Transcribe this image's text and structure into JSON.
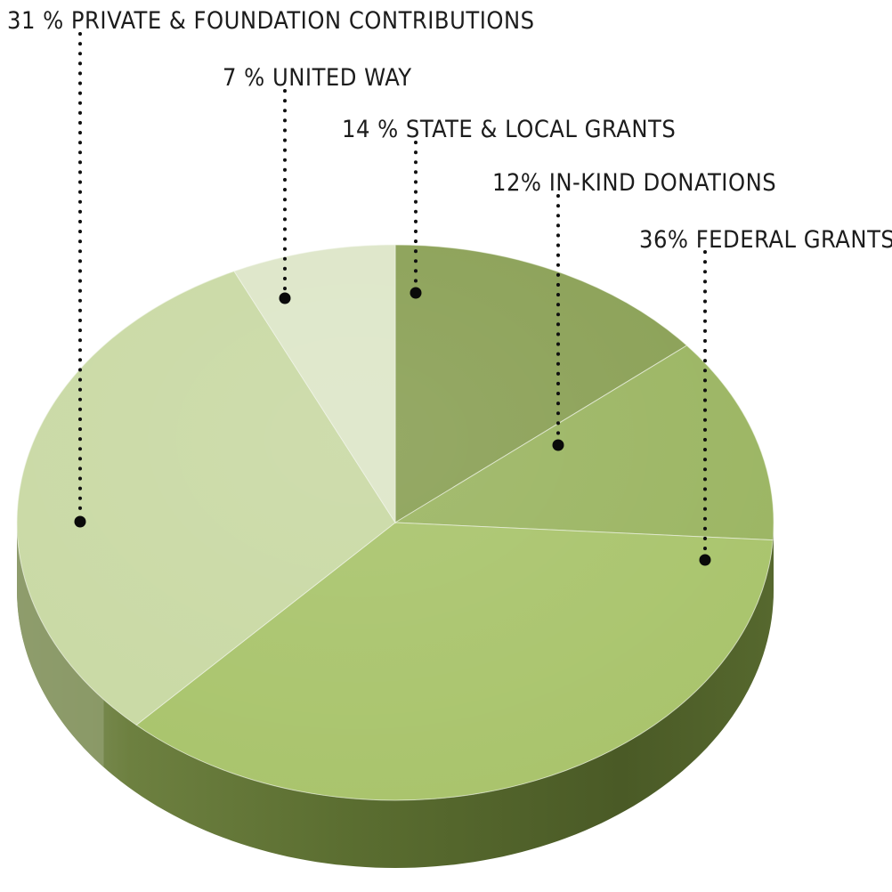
{
  "chart_data": {
    "type": "pie",
    "style": "3d",
    "slices": [
      {
        "label": "36% FEDERAL GRANTS",
        "value": 36,
        "color": "#a9c46c"
      },
      {
        "label": "12% IN-KIND DONATIONS",
        "value": 12,
        "color": "#9bb562"
      },
      {
        "label": "14 % STATE & LOCAL GRANTS",
        "value": 14,
        "color": "#8aa055"
      },
      {
        "label": "7 % UNITED WAY",
        "value": 7,
        "color": "#dde6c8"
      },
      {
        "label": "31 % PRIVATE & FOUNDATION CONTRIBUTIONS",
        "value": 31,
        "color": "#c9d9a4"
      }
    ],
    "side_colors": {
      "dark": "#4e5f2a",
      "light": "#8e9c6c"
    },
    "legend": "callout labels with dotted leader lines"
  }
}
